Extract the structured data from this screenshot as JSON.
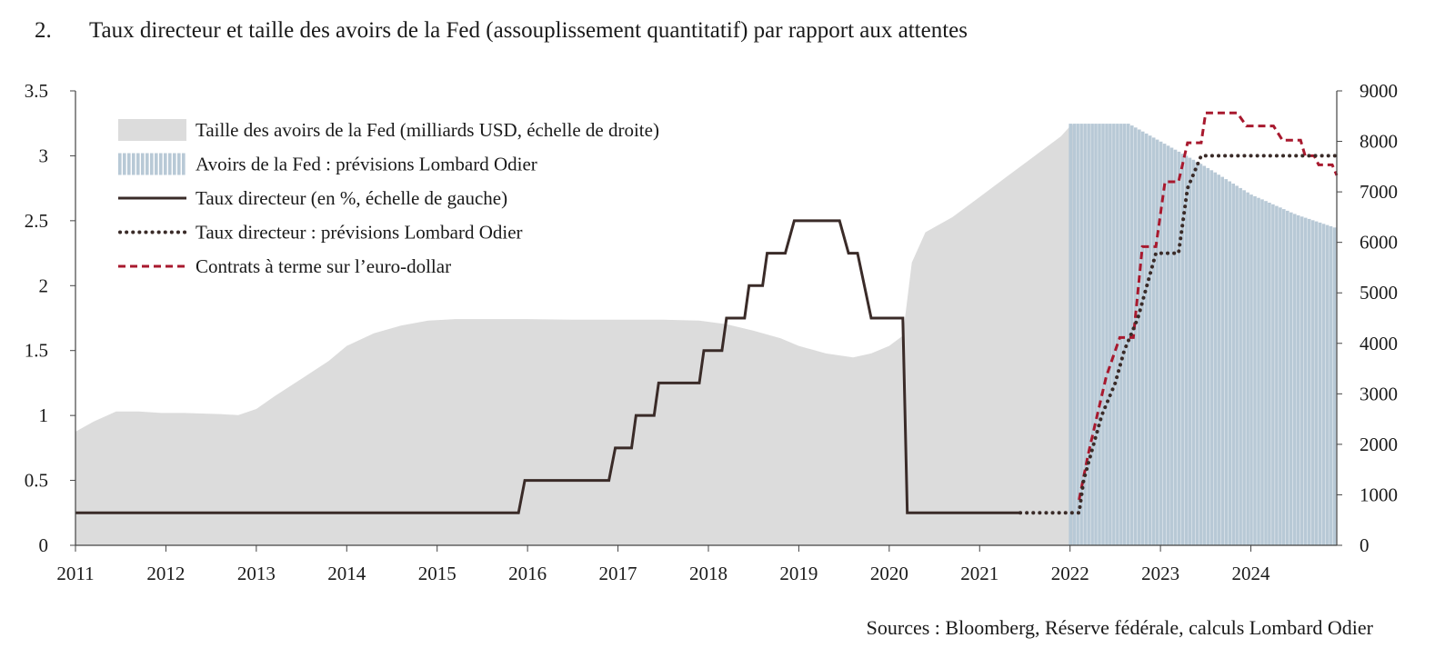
{
  "figure": {
    "number": "2.",
    "title": "Taux directeur et taille des avoirs de la Fed (assouplissement quantitatif) par rapport aux attentes",
    "source": "Sources : Bloomberg, Réserve fédérale, calculs Lombard Odier"
  },
  "chart_data": {
    "type": "line",
    "x_range": [
      2011.0,
      2024.95
    ],
    "x_ticks": [
      "2011",
      "2012",
      "2013",
      "2014",
      "2015",
      "2016",
      "2017",
      "2018",
      "2019",
      "2020",
      "2021",
      "2022",
      "2023",
      "2024"
    ],
    "y_left": {
      "range": [
        0,
        3.5
      ],
      "ticks": [
        "0",
        "0.5",
        "1",
        "1.5",
        "2",
        "2.5",
        "3",
        "3.5"
      ]
    },
    "y_right": {
      "range": [
        0,
        9000
      ],
      "ticks": [
        "0",
        "1000",
        "2000",
        "3000",
        "4000",
        "5000",
        "6000",
        "7000",
        "8000",
        "9000"
      ]
    },
    "grid": false,
    "legend_position": "top-left",
    "colors": {
      "balance": "#dcdcdc",
      "balance_forecast": "#b8c9d6",
      "policy_rate": "#3a2b28",
      "forecast_rate": "#3a2b28",
      "futures": "#a8192e",
      "axis": "#444444"
    },
    "series": [
      {
        "name": "Taille des avoirs de la Fed (milliards USD, échelle de droite)",
        "axis": "right",
        "style": "area",
        "points": [
          [
            2011.0,
            2250
          ],
          [
            2011.2,
            2450
          ],
          [
            2011.45,
            2650
          ],
          [
            2011.7,
            2650
          ],
          [
            2011.95,
            2620
          ],
          [
            2012.2,
            2620
          ],
          [
            2012.6,
            2600
          ],
          [
            2012.8,
            2580
          ],
          [
            2013.0,
            2700
          ],
          [
            2013.2,
            2950
          ],
          [
            2013.5,
            3300
          ],
          [
            2013.8,
            3650
          ],
          [
            2014.0,
            3950
          ],
          [
            2014.3,
            4200
          ],
          [
            2014.6,
            4350
          ],
          [
            2014.9,
            4450
          ],
          [
            2015.2,
            4480
          ],
          [
            2015.6,
            4480
          ],
          [
            2016.0,
            4480
          ],
          [
            2016.5,
            4470
          ],
          [
            2017.0,
            4470
          ],
          [
            2017.5,
            4470
          ],
          [
            2017.9,
            4450
          ],
          [
            2018.2,
            4380
          ],
          [
            2018.5,
            4250
          ],
          [
            2018.8,
            4100
          ],
          [
            2019.0,
            3950
          ],
          [
            2019.3,
            3800
          ],
          [
            2019.6,
            3720
          ],
          [
            2019.8,
            3800
          ],
          [
            2020.0,
            3950
          ],
          [
            2020.15,
            4150
          ],
          [
            2020.25,
            5600
          ],
          [
            2020.4,
            6200
          ],
          [
            2020.7,
            6500
          ],
          [
            2021.0,
            6900
          ],
          [
            2021.3,
            7300
          ],
          [
            2021.6,
            7700
          ],
          [
            2021.9,
            8100
          ],
          [
            2022.0,
            8300
          ],
          [
            2022.05,
            8350
          ]
        ]
      },
      {
        "name": "Avoirs de la Fed : prévisions Lombard Odier",
        "axis": "right",
        "style": "bars",
        "points": [
          [
            2022.0,
            8350
          ],
          [
            2022.65,
            8350
          ],
          [
            2023.0,
            8000
          ],
          [
            2023.5,
            7500
          ],
          [
            2024.0,
            6950
          ],
          [
            2024.5,
            6550
          ],
          [
            2024.95,
            6280
          ]
        ]
      },
      {
        "name": "Taux directeur (en %, échelle de gauche)",
        "axis": "left",
        "style": "solid",
        "points": [
          [
            2011.0,
            0.25
          ],
          [
            2015.9,
            0.25
          ],
          [
            2015.97,
            0.5
          ],
          [
            2016.9,
            0.5
          ],
          [
            2016.97,
            0.75
          ],
          [
            2017.15,
            0.75
          ],
          [
            2017.2,
            1.0
          ],
          [
            2017.4,
            1.0
          ],
          [
            2017.45,
            1.25
          ],
          [
            2017.9,
            1.25
          ],
          [
            2017.95,
            1.5
          ],
          [
            2018.15,
            1.5
          ],
          [
            2018.2,
            1.75
          ],
          [
            2018.4,
            1.75
          ],
          [
            2018.45,
            2.0
          ],
          [
            2018.5,
            2.0
          ],
          [
            2018.55,
            null
          ],
          [
            2018.5,
            2.0
          ],
          [
            2018.6,
            2.0
          ],
          [
            2018.65,
            2.25
          ],
          [
            2018.85,
            2.25
          ],
          [
            2018.95,
            2.5
          ],
          [
            2019.45,
            2.5
          ],
          [
            2019.55,
            2.25
          ],
          [
            2019.65,
            2.25
          ],
          [
            2019.8,
            1.75
          ],
          [
            2020.15,
            1.75
          ],
          [
            2020.2,
            0.25
          ],
          [
            2021.45,
            0.25
          ]
        ]
      },
      {
        "name": "Taux directeur : prévisions Lombard Odier",
        "axis": "left",
        "style": "dotted",
        "points": [
          [
            2021.45,
            0.25
          ],
          [
            2022.1,
            0.25
          ],
          [
            2022.15,
            0.5
          ],
          [
            2022.25,
            0.75
          ],
          [
            2022.35,
            1.0
          ],
          [
            2022.5,
            1.25
          ],
          [
            2022.6,
            1.5
          ],
          [
            2022.75,
            1.75
          ],
          [
            2022.95,
            2.25
          ],
          [
            2023.2,
            2.25
          ],
          [
            2023.3,
            2.75
          ],
          [
            2023.45,
            3.0
          ],
          [
            2024.95,
            3.0
          ]
        ]
      },
      {
        "name": "Contrats à terme sur l’euro-dollar",
        "axis": "left",
        "style": "dashed",
        "points": [
          [
            2022.1,
            0.35
          ],
          [
            2022.2,
            0.7
          ],
          [
            2022.3,
            1.0
          ],
          [
            2022.4,
            1.3
          ],
          [
            2022.55,
            1.6
          ],
          [
            2022.7,
            1.6
          ],
          [
            2022.8,
            2.3
          ],
          [
            2022.95,
            2.3
          ],
          [
            2023.05,
            2.8
          ],
          [
            2023.2,
            2.8
          ],
          [
            2023.3,
            3.1
          ],
          [
            2023.45,
            3.1
          ],
          [
            2023.5,
            3.33
          ],
          [
            2023.85,
            3.33
          ],
          [
            2023.95,
            3.23
          ],
          [
            2024.25,
            3.23
          ],
          [
            2024.35,
            3.12
          ],
          [
            2024.55,
            3.12
          ],
          [
            2024.6,
            3.0
          ],
          [
            2024.7,
            3.0
          ],
          [
            2024.75,
            2.93
          ],
          [
            2024.9,
            2.93
          ],
          [
            2024.95,
            2.85
          ]
        ]
      }
    ]
  }
}
